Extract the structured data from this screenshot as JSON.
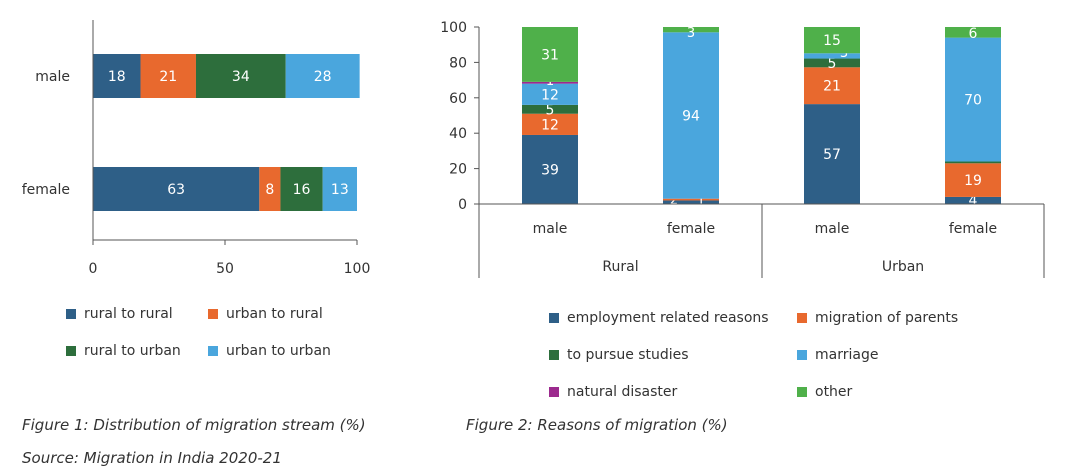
{
  "chart_data": [
    {
      "type": "bar",
      "orientation": "horizontal",
      "stacked": true,
      "title": "Figure 1: Distribution of migration stream (%)",
      "categories": [
        "male",
        "female"
      ],
      "xlim": [
        0,
        100
      ],
      "x_ticks": [
        "0",
        "50",
        "100"
      ],
      "grid": false,
      "legend_position": "bottom",
      "series": [
        {
          "name": "rural to rural",
          "color": "#2e5f87",
          "values": [
            18,
            63
          ]
        },
        {
          "name": "urban to rural",
          "color": "#e8692e",
          "values": [
            21,
            8
          ]
        },
        {
          "name": "rural to urban",
          "color": "#2d6e3c",
          "values": [
            34,
            16
          ]
        },
        {
          "name": "urban to urban",
          "color": "#4aa6dd",
          "values": [
            28,
            13
          ]
        }
      ]
    },
    {
      "type": "bar",
      "orientation": "vertical",
      "stacked": true,
      "title": "Figure 2: Reasons of migration (%)",
      "categories": [
        "male",
        "female",
        "male",
        "female"
      ],
      "groups": [
        {
          "label": "Rural",
          "categories": [
            "male",
            "female"
          ]
        },
        {
          "label": "Urban",
          "categories": [
            "male",
            "female"
          ]
        }
      ],
      "ylim": [
        0,
        100
      ],
      "y_ticks": [
        "0",
        "20",
        "40",
        "60",
        "80",
        "100"
      ],
      "grid": false,
      "legend_position": "bottom",
      "series": [
        {
          "name": "employment related reasons",
          "color": "#2e5f87",
          "values": [
            39,
            2,
            57,
            4
          ],
          "labels": [
            "39",
            "2",
            "57",
            "4"
          ]
        },
        {
          "name": "migration of parents",
          "color": "#e8692e",
          "values": [
            12,
            1,
            21,
            19
          ],
          "labels": [
            "12",
            "1",
            "21",
            "19"
          ]
        },
        {
          "name": "to pursue studies",
          "color": "#2d6e3c",
          "values": [
            5,
            0,
            5,
            1
          ],
          "labels": [
            "5",
            "",
            "5",
            "1"
          ]
        },
        {
          "name": "marriage",
          "color": "#4aa6dd",
          "values": [
            12,
            94,
            3,
            70
          ],
          "labels": [
            "12",
            "94",
            "3",
            "70"
          ]
        },
        {
          "name": "natural disaster",
          "color": "#9c2a8e",
          "values": [
            1,
            0,
            0,
            0
          ],
          "labels": [
            "1",
            "",
            "",
            ""
          ]
        },
        {
          "name": "other",
          "color": "#4fb04a",
          "values": [
            31,
            3,
            15,
            6
          ],
          "labels": [
            "31",
            "3",
            "15",
            "6"
          ]
        }
      ]
    }
  ],
  "source": "Source: Migration in India 2020-21"
}
